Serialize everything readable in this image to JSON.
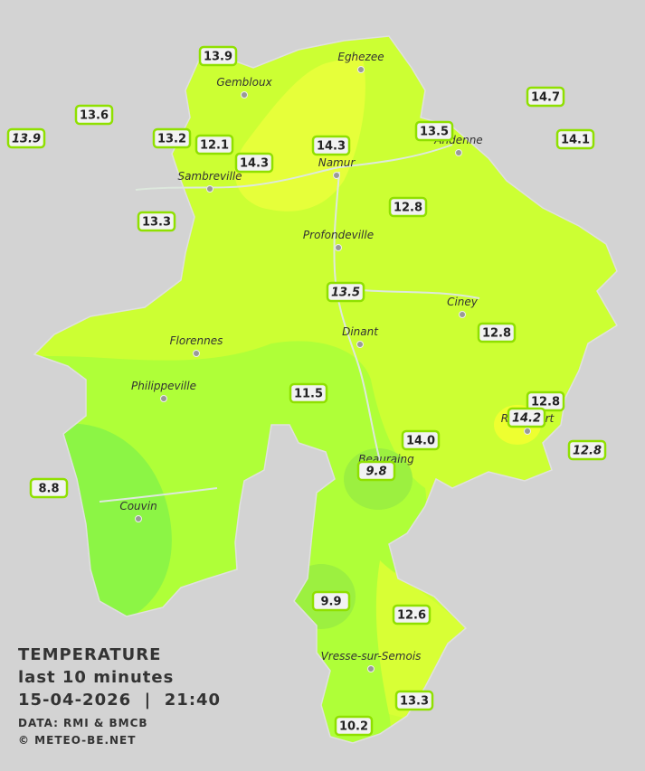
{
  "legend": {
    "title": "TEMPERATURE",
    "period": "last 10 minutes",
    "datetime": "15-04-2026  |  21:40",
    "source": "DATA: RMI & BMCB",
    "credit": "© METEO-BE.NET"
  },
  "towns": [
    "Eghezee",
    "Gembloux",
    "Andenne",
    "Namur",
    "Sambreville",
    "Profondeville",
    "Ciney",
    "Dinant",
    "Florennes",
    "Philippeville",
    "Rochefort",
    "Beauraing",
    "Couvin",
    "Vresse-sur-Semois"
  ],
  "stations": [
    "13.9",
    "13.6",
    "13.9",
    "13.2",
    "12.1",
    "14.3",
    "14.3",
    "13.5",
    "14.7",
    "14.1",
    "13.3",
    "12.8",
    "13.5",
    "12.8",
    "11.5",
    "12.8",
    "14.2",
    "14.0",
    "12.8",
    "9.8",
    "8.8",
    "9.9",
    "12.6",
    "13.3",
    "10.2"
  ]
}
